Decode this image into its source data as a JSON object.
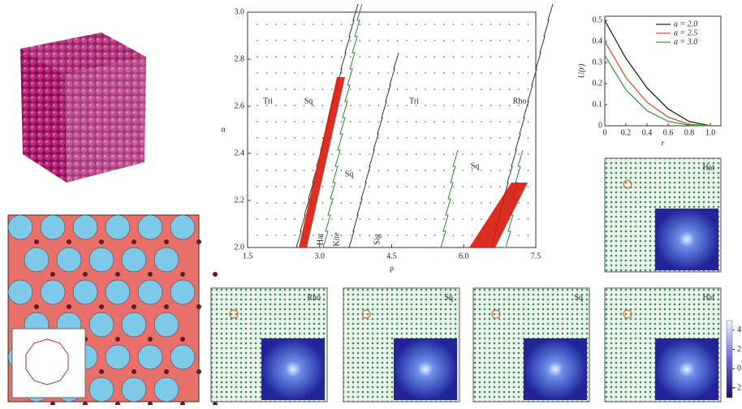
{
  "chart_data": [
    {
      "type": "phase",
      "xlabel": "ρ",
      "ylabel": "α",
      "xlim": [
        1.5,
        7.5
      ],
      "ylim": [
        2.0,
        3.0
      ],
      "xticks": [
        1.5,
        {
          "value": 3,
          "label": "3.0"
        },
        4.5,
        {
          "value": 6,
          "label": "6.0"
        },
        7.5
      ],
      "yticks": [
        {
          "value": 2,
          "label": "2.0"
        },
        2.2,
        2.4,
        2.6,
        2.8,
        {
          "value": 3,
          "label": "3.0"
        }
      ],
      "region_labels": [
        "Tri",
        "Sq",
        "Tri",
        "Rho",
        "Sq",
        "Sq",
        "Hat",
        "Kite",
        "Sig"
      ]
    },
    {
      "type": "line",
      "xlabel": "r",
      "ylabel": "U(r)",
      "xlim": [
        0,
        1.1
      ],
      "ylim": [
        0,
        0.52
      ],
      "x": [
        0,
        0.2,
        0.4,
        0.6,
        0.8,
        1.0
      ],
      "xticks": [
        0,
        0.2,
        0.4,
        0.6,
        0.8,
        {
          "value": 1,
          "label": "1.0"
        }
      ],
      "yticks": [
        0,
        0.1,
        0.2,
        0.3,
        0.4,
        0.5
      ],
      "series": [
        {
          "name": "a = 2.0",
          "color": "#222222",
          "values": [
            0.5,
            0.32,
            0.18,
            0.08,
            0.02,
            0
          ]
        },
        {
          "name": "a = 2.5",
          "color": "#e0502a",
          "values": [
            0.4,
            0.229,
            0.112,
            0.041,
            0.007,
            0
          ]
        },
        {
          "name": "a = 3.0",
          "color": "#3a9a3a",
          "values": [
            0.333,
            0.171,
            0.072,
            0.021,
            0.003,
            0
          ]
        }
      ]
    }
  ],
  "panels": [
    "Hat",
    "Rho",
    "Sq",
    "Sq",
    "Hat"
  ],
  "colorbar": {
    "lim": [
      -3,
      5
    ],
    "ticks": [
      4,
      2,
      0,
      {
        "value": -2,
        "label": "−2"
      }
    ]
  }
}
